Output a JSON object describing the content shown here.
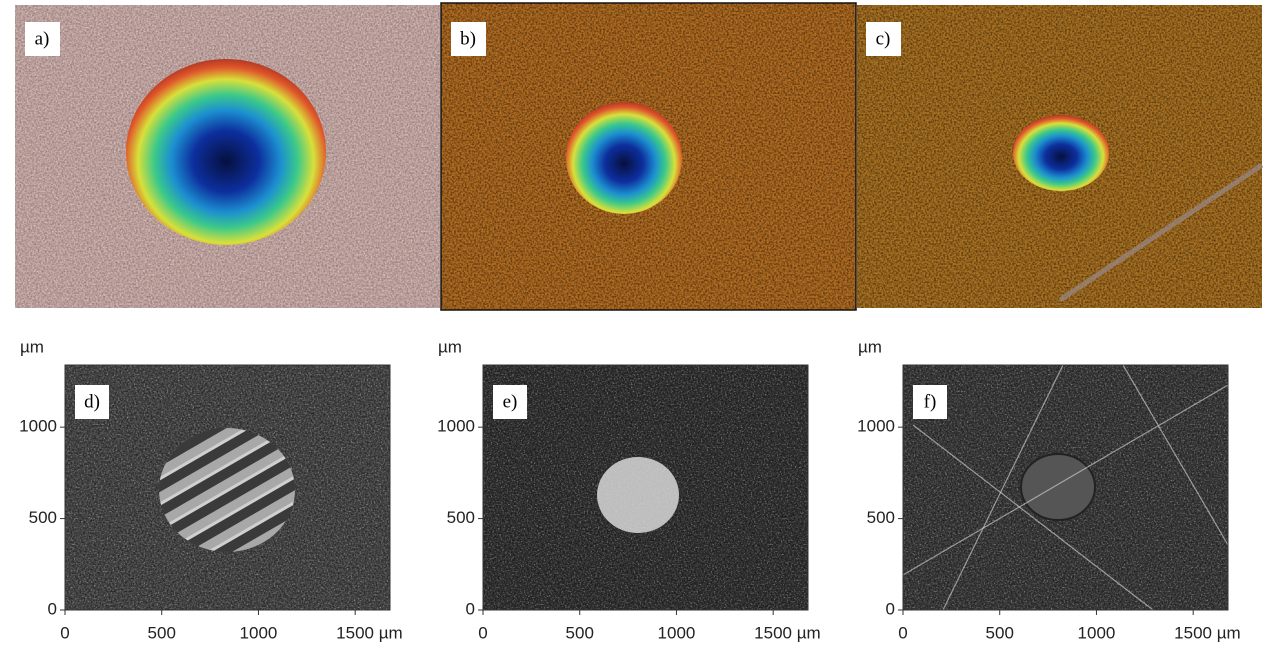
{
  "panels_top": [
    {
      "label": "a)"
    },
    {
      "label": "b)"
    },
    {
      "label": "c)"
    }
  ],
  "panels_bottom": [
    {
      "label": "d)",
      "y_unit": "µm",
      "xlim": [
        0,
        1680
      ],
      "ylim": [
        0,
        1340
      ],
      "xticks": [
        0,
        500,
        1000,
        {
          "value": 1500,
          "label": "1500 µm"
        }
      ],
      "yticks": [
        0,
        500,
        1000
      ]
    },
    {
      "label": "e)",
      "y_unit": "µm",
      "xlim": [
        0,
        1680
      ],
      "ylim": [
        0,
        1340
      ],
      "xticks": [
        0,
        500,
        1000,
        {
          "value": 1500,
          "label": "1500 µm"
        }
      ],
      "yticks": [
        0,
        500,
        1000
      ]
    },
    {
      "label": "f)",
      "y_unit": "µm",
      "xlim": [
        0,
        1680
      ],
      "ylim": [
        0,
        1340
      ],
      "xticks": [
        0,
        500,
        1000,
        {
          "value": 1500,
          "label": "1500 µm"
        }
      ],
      "yticks": [
        0,
        500,
        1000
      ]
    }
  ]
}
